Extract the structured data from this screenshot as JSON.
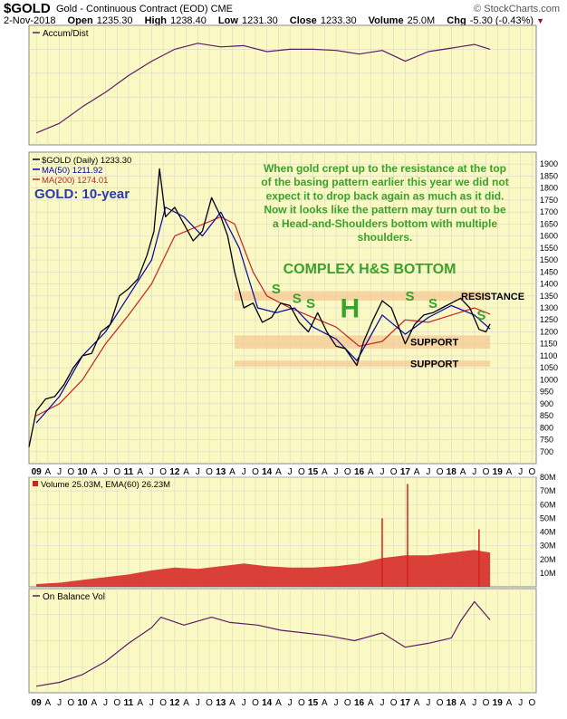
{
  "header": {
    "symbol": "$GOLD",
    "name": "Gold - Continuous Contract (EOD)",
    "exchange": "CME",
    "brand": "© StockCharts.com",
    "date": "2-Nov-2018",
    "open_label": "Open",
    "open": "1235.30",
    "high_label": "High",
    "high": "1238.40",
    "low_label": "Low",
    "low": "1231.30",
    "close_label": "Close",
    "close": "1233.30",
    "volume_label": "Volume",
    "volume": "25.0M",
    "chg_label": "Chg",
    "chg": "-5.30 (-0.43%)"
  },
  "colors": {
    "panel_bg": "#fbf9c3",
    "grid": "#d8d8c8",
    "price": "#000000",
    "ma50": "#0000aa",
    "ma200": "#cc2222",
    "indicator": "#5a1a6a",
    "volume": "#d42020",
    "annotation": "#3aa12a",
    "title": "#2a3ab0",
    "band": "#f4c896"
  },
  "chart_data": [
    {
      "type": "line",
      "panel": "accum_dist",
      "legend": [
        "Accum/Dist"
      ],
      "legend_position": "top-left",
      "grid": true,
      "x": [
        2009.0,
        2009.5,
        2010.0,
        2010.5,
        2011.0,
        2011.5,
        2012.0,
        2012.5,
        2013.0,
        2013.5,
        2014.0,
        2014.5,
        2015.0,
        2015.5,
        2016.0,
        2016.5,
        2017.0,
        2017.5,
        2018.0,
        2018.5,
        2018.84
      ],
      "values": [
        10,
        18,
        32,
        44,
        58,
        70,
        80,
        85,
        82,
        83,
        78,
        80,
        80,
        79,
        76,
        79,
        70,
        78,
        81,
        84,
        80
      ]
    },
    {
      "type": "line",
      "panel": "price",
      "title": "GOLD: 10-year",
      "legend": [
        "$GOLD (Daily) 1233.30",
        "MA(50) 1211.92",
        "MA(200) 1274.01"
      ],
      "legend_position": "top-left",
      "grid": true,
      "ylim": [
        650,
        1950
      ],
      "y_ticks": [
        700,
        750,
        800,
        850,
        900,
        950,
        1000,
        1050,
        1100,
        1150,
        1200,
        1250,
        1300,
        1350,
        1400,
        1450,
        1500,
        1550,
        1600,
        1650,
        1700,
        1750,
        1800,
        1850,
        1900
      ],
      "x_tick_labels": [
        "09",
        "A",
        "J",
        "O",
        "10",
        "A",
        "J",
        "O",
        "11",
        "A",
        "J",
        "O",
        "12",
        "A",
        "J",
        "O",
        "13",
        "A",
        "J",
        "O",
        "14",
        "A",
        "J",
        "O",
        "15",
        "A",
        "J",
        "O",
        "16",
        "A",
        "J",
        "O",
        "17",
        "A",
        "J",
        "O",
        "18",
        "A",
        "J",
        "O",
        "19",
        "A",
        "J",
        "O"
      ],
      "series": [
        {
          "name": "$GOLD (Daily)",
          "x": [
            2008.84,
            2009.0,
            2009.2,
            2009.4,
            2009.6,
            2009.8,
            2010.0,
            2010.2,
            2010.4,
            2010.6,
            2010.8,
            2011.0,
            2011.2,
            2011.4,
            2011.55,
            2011.67,
            2011.8,
            2012.0,
            2012.2,
            2012.4,
            2012.6,
            2012.8,
            2013.0,
            2013.15,
            2013.3,
            2013.5,
            2013.7,
            2013.9,
            2014.1,
            2014.3,
            2014.5,
            2014.7,
            2014.9,
            2015.1,
            2015.3,
            2015.5,
            2015.7,
            2015.95,
            2016.1,
            2016.3,
            2016.5,
            2016.7,
            2016.9,
            2017.0,
            2017.2,
            2017.4,
            2017.6,
            2017.8,
            2018.0,
            2018.2,
            2018.4,
            2018.6,
            2018.75,
            2018.84
          ],
          "values": [
            720,
            870,
            920,
            930,
            980,
            1050,
            1100,
            1110,
            1200,
            1230,
            1350,
            1380,
            1420,
            1520,
            1620,
            1880,
            1680,
            1720,
            1650,
            1580,
            1620,
            1760,
            1680,
            1600,
            1450,
            1300,
            1320,
            1240,
            1260,
            1320,
            1310,
            1240,
            1200,
            1280,
            1200,
            1140,
            1130,
            1060,
            1160,
            1250,
            1330,
            1300,
            1200,
            1150,
            1230,
            1270,
            1280,
            1300,
            1320,
            1340,
            1300,
            1210,
            1200,
            1233
          ]
        },
        {
          "name": "MA(50)",
          "x": [
            2009.0,
            2009.5,
            2010.0,
            2010.5,
            2011.0,
            2011.5,
            2011.8,
            2012.2,
            2012.6,
            2013.0,
            2013.4,
            2013.8,
            2014.2,
            2014.6,
            2015.0,
            2015.5,
            2015.95,
            2016.5,
            2017.0,
            2017.5,
            2018.0,
            2018.5,
            2018.84
          ],
          "values": [
            820,
            930,
            1100,
            1200,
            1350,
            1500,
            1720,
            1680,
            1600,
            1700,
            1550,
            1300,
            1280,
            1300,
            1220,
            1170,
            1080,
            1270,
            1190,
            1260,
            1310,
            1270,
            1212
          ]
        },
        {
          "name": "MA(200)",
          "x": [
            2009.0,
            2009.5,
            2010.0,
            2010.5,
            2011.0,
            2011.5,
            2012.0,
            2012.5,
            2013.0,
            2013.3,
            2013.7,
            2014.0,
            2014.5,
            2015.0,
            2015.5,
            2016.0,
            2016.5,
            2017.0,
            2017.5,
            2018.0,
            2018.5,
            2018.84
          ],
          "values": [
            850,
            900,
            1000,
            1150,
            1270,
            1400,
            1600,
            1640,
            1680,
            1650,
            1450,
            1350,
            1300,
            1260,
            1220,
            1140,
            1160,
            1250,
            1240,
            1270,
            1300,
            1274
          ]
        }
      ],
      "bands": [
        {
          "label": "RESISTANCE",
          "from": 1330,
          "to": 1370,
          "x_start": 2013.3,
          "x_end": 2018.84
        },
        {
          "label": "SUPPORT",
          "from": 1130,
          "to": 1185,
          "x_start": 2013.3,
          "x_end": 2018.84
        },
        {
          "label": "SUPPORT",
          "from": 1055,
          "to": 1080,
          "x_start": 2013.3,
          "x_end": 2018.84
        }
      ],
      "annotations": [
        {
          "text": "When gold crept up to the resistance at the top",
          "line": 1
        },
        {
          "text": "of the basing pattern earlier this year we did not",
          "line": 2
        },
        {
          "text": "expect it to drop back again as much as it did.",
          "line": 3
        },
        {
          "text": "Now it looks like the pattern may turn out to be",
          "line": 4
        },
        {
          "text": "a Head-and-Shoulders bottom with multiple",
          "line": 5
        },
        {
          "text": "shoulders.",
          "line": 6
        },
        {
          "text": "COMPLEX H&S BOTTOM",
          "line": 7
        }
      ],
      "pattern_marks": [
        {
          "text": "S",
          "x": 2014.2,
          "y": 1360
        },
        {
          "text": "S",
          "x": 2014.65,
          "y": 1320
        },
        {
          "text": "S",
          "x": 2014.95,
          "y": 1300
        },
        {
          "text": "H",
          "x": 2015.8,
          "y": 1260
        },
        {
          "text": "S",
          "x": 2017.1,
          "y": 1330
        },
        {
          "text": "S",
          "x": 2017.6,
          "y": 1300
        },
        {
          "text": "S",
          "x": 2018.65,
          "y": 1250
        }
      ]
    },
    {
      "type": "bar",
      "panel": "volume",
      "legend": [
        "Volume 25.03M, EMA(60) 26.23M"
      ],
      "legend_position": "top-left",
      "grid": true,
      "ylim": [
        0,
        80
      ],
      "y_tick_labels": [
        "10M",
        "20M",
        "30M",
        "40M",
        "50M",
        "60M",
        "70M",
        "80M"
      ],
      "y_ticks": [
        10,
        20,
        30,
        40,
        50,
        60,
        70,
        80
      ],
      "x": [
        2009.0,
        2009.5,
        2010.0,
        2010.5,
        2011.0,
        2011.5,
        2012.0,
        2012.5,
        2013.0,
        2013.5,
        2014.0,
        2014.5,
        2015.0,
        2015.5,
        2016.0,
        2016.5,
        2017.0,
        2017.5,
        2018.0,
        2018.5,
        2018.84
      ],
      "values": [
        2,
        3,
        5,
        7,
        9,
        12,
        14,
        13,
        15,
        17,
        15,
        14,
        14,
        15,
        17,
        21,
        23,
        23,
        25,
        27,
        25
      ],
      "spikes": [
        {
          "x": 2017.05,
          "value": 75
        },
        {
          "x": 2016.5,
          "value": 50
        },
        {
          "x": 2018.6,
          "value": 42
        }
      ]
    },
    {
      "type": "line",
      "panel": "obv",
      "legend": [
        "On Balance Vol"
      ],
      "legend_position": "top-left",
      "grid": true,
      "x": [
        2009.0,
        2009.5,
        2010.0,
        2010.5,
        2011.0,
        2011.5,
        2011.7,
        2012.2,
        2012.8,
        2013.2,
        2013.8,
        2014.3,
        2014.8,
        2015.3,
        2015.9,
        2016.5,
        2017.0,
        2017.5,
        2018.0,
        2018.2,
        2018.5,
        2018.84
      ],
      "values": [
        5,
        8,
        14,
        24,
        38,
        50,
        58,
        52,
        58,
        54,
        52,
        48,
        46,
        44,
        40,
        46,
        35,
        38,
        42,
        55,
        70,
        56
      ]
    }
  ]
}
